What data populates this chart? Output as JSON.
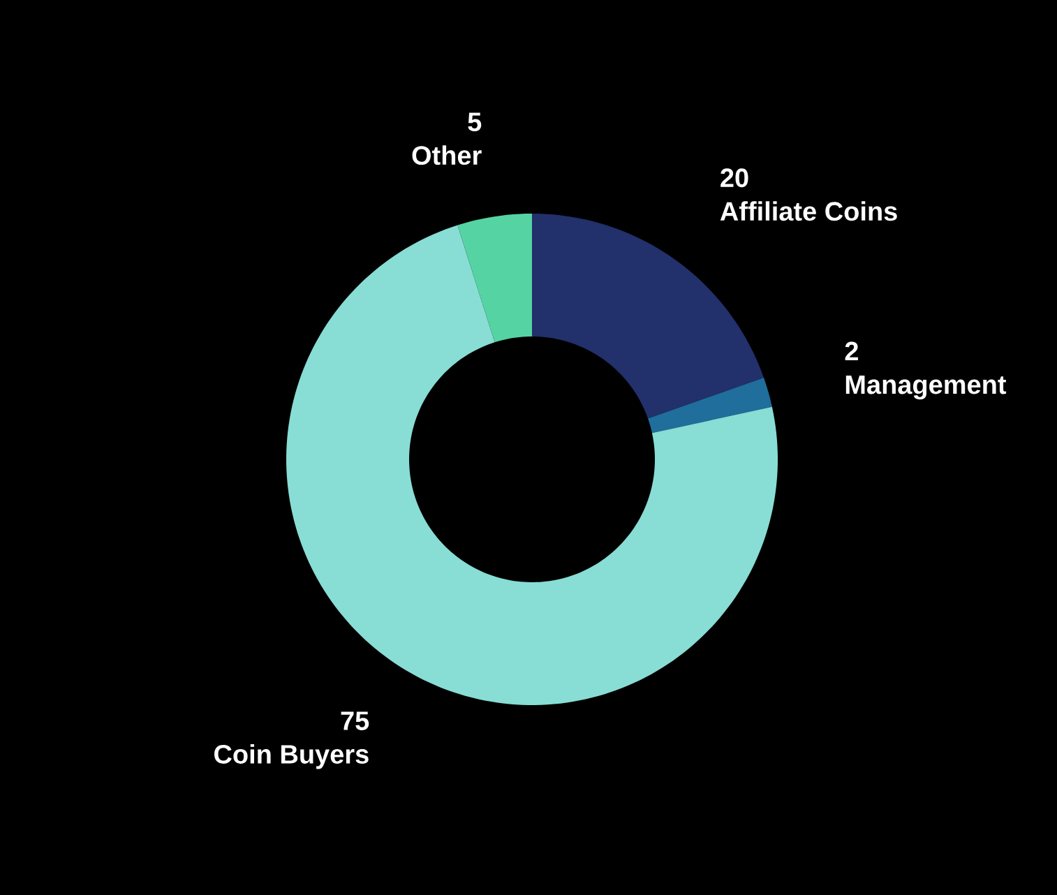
{
  "chart_data": {
    "type": "donut",
    "categories": [
      "Affiliate Coins",
      "Management",
      "Coin Buyers",
      "Other"
    ],
    "values": [
      20,
      2,
      75,
      5
    ],
    "colors": [
      "#22306b",
      "#1f6e9c",
      "#88ddd5",
      "#56d3a3"
    ],
    "data_labels": true
  }
}
